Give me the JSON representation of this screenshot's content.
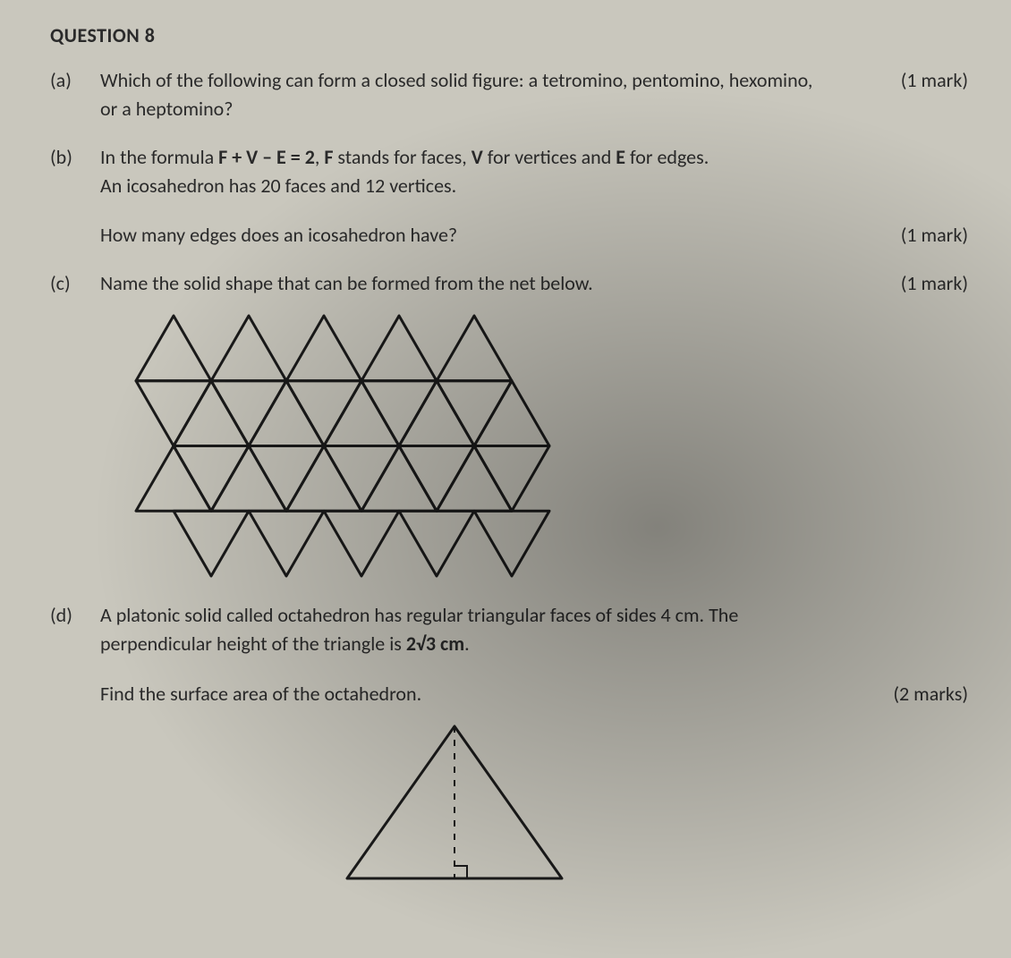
{
  "title": "QUESTION 8",
  "parts": {
    "a": {
      "label": "(a)",
      "line1": "Which of the following can form a closed solid figure: a tetromino, pentomino, hexomino,",
      "line2": "or a heptomino?",
      "marks": "(1 mark)"
    },
    "b": {
      "label": "(b)",
      "prefix": "In the formula ",
      "formula": "F + V – E = 2",
      "mid1": ", ",
      "F": "F",
      "mid2": " stands for faces, ",
      "V": "V",
      "mid3": " for vertices and ",
      "E": "E",
      "mid4": " for edges.",
      "line2": "An icosahedron has 20 faces and 12 vertices.",
      "question": "How many edges does an icosahedron have?",
      "marks": "(1 mark)"
    },
    "c": {
      "label": "(c)",
      "text": "Name the solid shape that can be formed from the net below.",
      "marks": "(1 mark)"
    },
    "d": {
      "label": "(d)",
      "line1a": "A platonic solid called octahedron has regular triangular faces of sides 4 cm. The",
      "line1b_prefix": "perpendicular height of the triangle is ",
      "line1b_val": "2√3 cm",
      "line1b_suffix": ".",
      "question": "Find the surface area of the octahedron.",
      "marks": "(2 marks)"
    }
  },
  "icosa_net": {
    "type": "net-triangles",
    "stroke": "#1a1a1a",
    "stroke_width": 3,
    "side": 84,
    "cols": 5
  },
  "triangle_fig": {
    "type": "triangle",
    "stroke": "#1a1a1a",
    "stroke_width": 3,
    "base": 240,
    "height": 170,
    "dash": "7,8"
  }
}
